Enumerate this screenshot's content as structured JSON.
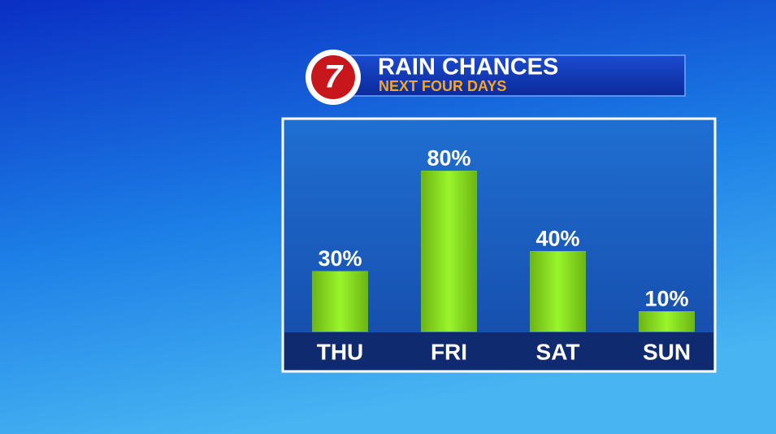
{
  "logo": "7",
  "chart_data": {
    "type": "bar",
    "title": "RAIN CHANCES",
    "subtitle": "NEXT FOUR DAYS",
    "categories": [
      "THU",
      "FRI",
      "SAT",
      "SUN"
    ],
    "values": [
      30,
      80,
      40,
      10
    ],
    "value_labels": [
      "30%",
      "80%",
      "40%",
      "10%"
    ],
    "color": "#8ee21c"
  }
}
